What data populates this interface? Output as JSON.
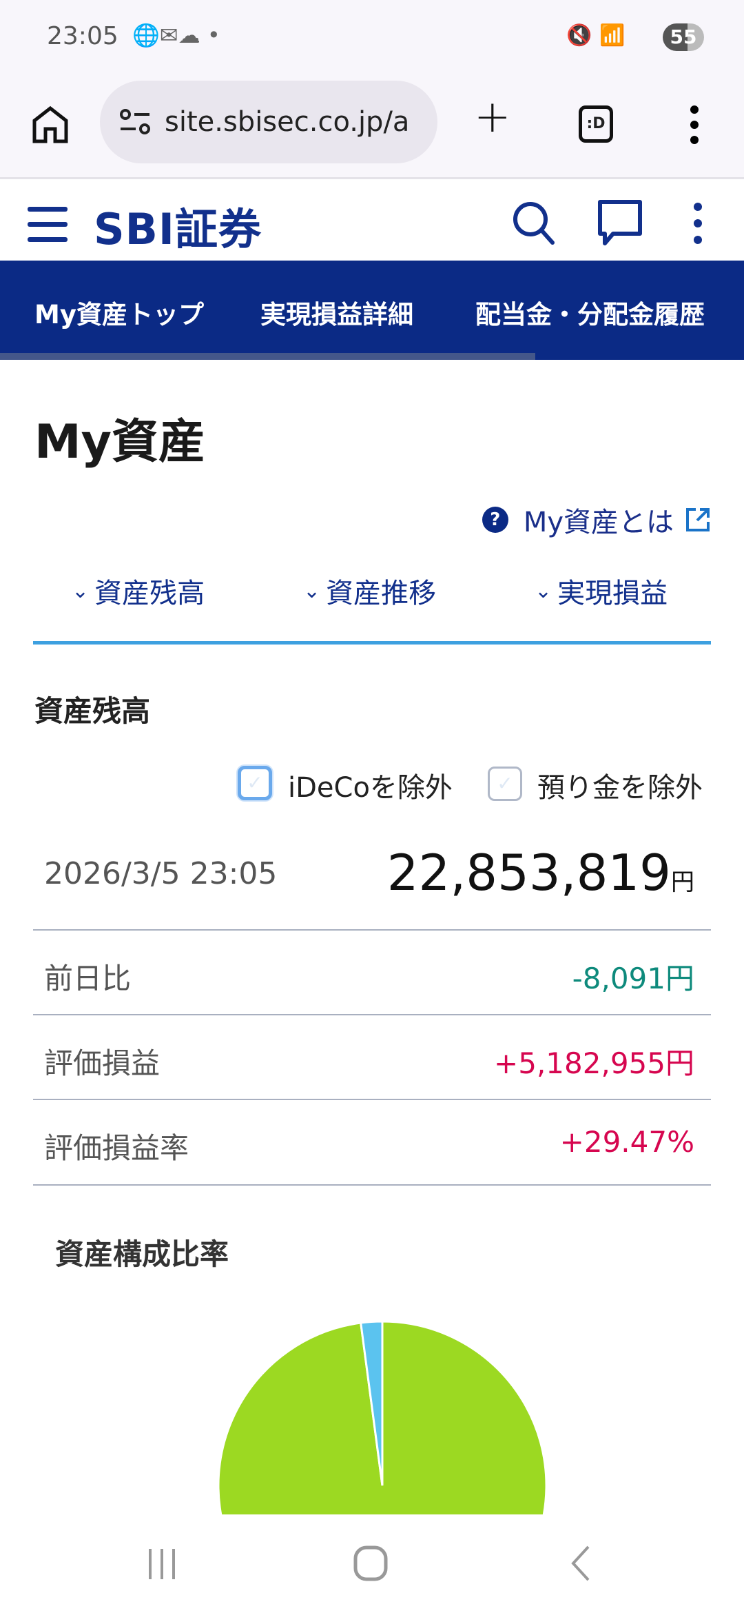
{
  "status_bar": {
    "time": "23:05",
    "battery": "55"
  },
  "browser": {
    "url": "site.sbisec.co.jp/a",
    "tab_label": ":D"
  },
  "site_header": {
    "logo": "SBI証券"
  },
  "nav": {
    "items": [
      {
        "label": "My資産トップ"
      },
      {
        "label": "実現損益詳細"
      },
      {
        "label": "配当金・分配金履歴"
      }
    ],
    "scroll_progress": 0.72
  },
  "page": {
    "title": "My資産",
    "help_link": "My資産とは",
    "anchors": [
      {
        "label": "資産残高"
      },
      {
        "label": "資産推移"
      },
      {
        "label": "実現損益"
      }
    ],
    "balance_section": {
      "heading": "資産残高",
      "checkboxes": [
        {
          "label": "iDeCoを除外",
          "checked": false,
          "focused": true
        },
        {
          "label": "預り金を除外",
          "checked": false
        }
      ],
      "datetime": "2026/3/5 23:05",
      "total": "22,853,819",
      "currency": "円",
      "rows": [
        {
          "label": "前日比",
          "value": "-8,091円",
          "color": "#0e8a7c"
        },
        {
          "label": "評価損益",
          "value": "+5,182,955円",
          "color": "#d6064f"
        },
        {
          "label": "評価損益率",
          "value": "+29.47%",
          "color": "#d6064f"
        }
      ]
    },
    "composition": {
      "heading": "資産構成比率"
    }
  },
  "chart_data": {
    "type": "pie",
    "values": [
      97.9,
      2.1
    ],
    "colors": [
      "#9cd922",
      "#5bc3ef"
    ],
    "start": "top",
    "direction": "clockwise-from-12"
  },
  "colors": {
    "brand": "#0b2a85",
    "accent_line": "#3da0e0",
    "link": "#1a2f8a"
  }
}
